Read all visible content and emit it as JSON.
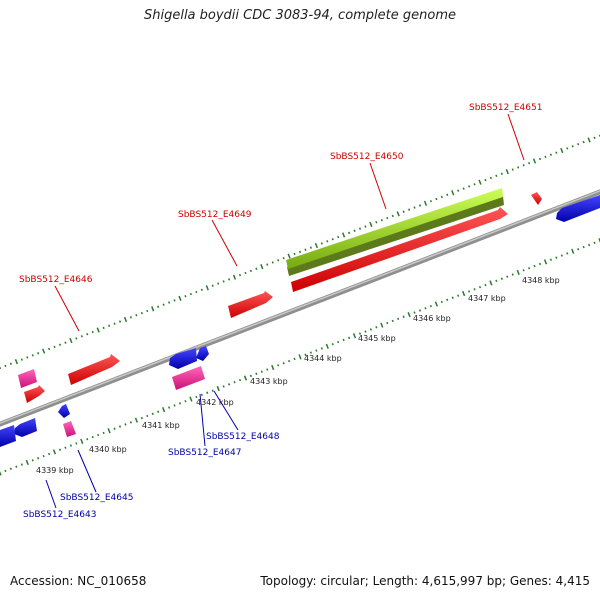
{
  "title": "Shigella boydii CDC 3083-94, complete genome",
  "footer": {
    "accession": "Accession: NC_010658",
    "summary": "Topology: circular; Length: 4,615,997 bp; Genes: 4,415"
  },
  "colors": {
    "backbone": "#8a8a8a",
    "tick": "#2a7a2a",
    "forward_label": "#cc0000",
    "reverse_label": "#0000aa",
    "red": "#ee1111",
    "blue": "#1111dd",
    "pink": "#ee3399",
    "green": "#99dd22"
  },
  "ruler": {
    "labels": [
      "4339 kbp",
      "4340 kbp",
      "4341 kbp",
      "4342 kbp",
      "4343 kbp",
      "4344 kbp",
      "4345 kbp",
      "4346 kbp",
      "4347 kbp",
      "4348 kbp"
    ]
  },
  "forward_genes": [
    {
      "label": "SbBS512_E4646"
    },
    {
      "label": "SbBS512_E4649"
    },
    {
      "label": "SbBS512_E4650"
    },
    {
      "label": "SbBS512_E4651"
    }
  ],
  "reverse_genes": [
    {
      "label": "SbBS512_E4643"
    },
    {
      "label": "SbBS512_E4645"
    },
    {
      "label": "SbBS512_E4647"
    },
    {
      "label": "SbBS512_E4648"
    }
  ]
}
